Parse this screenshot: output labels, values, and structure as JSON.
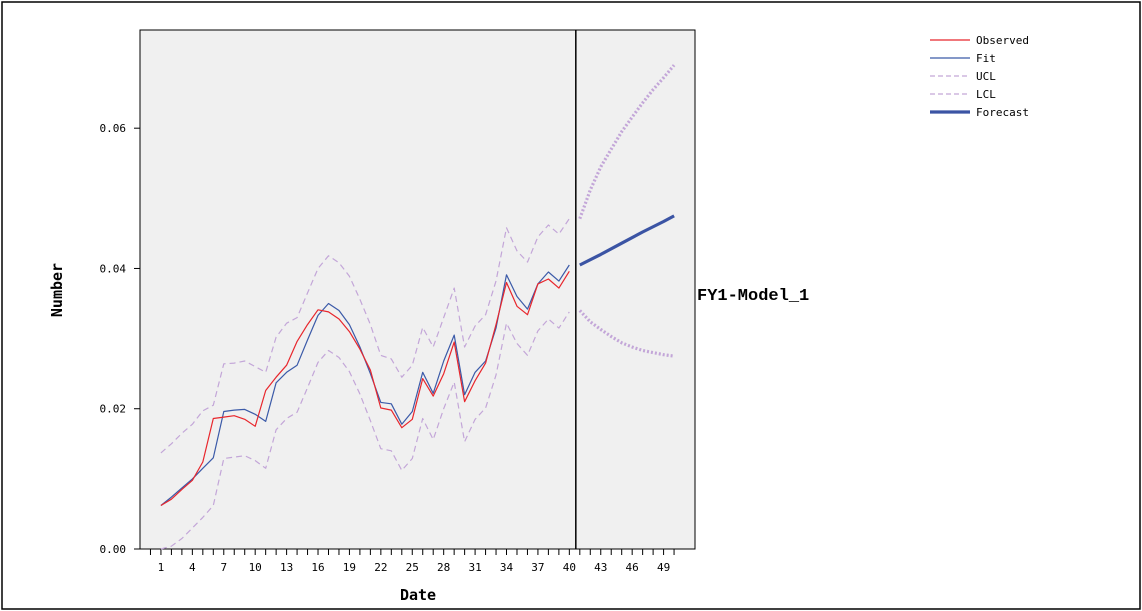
{
  "chart_data": {
    "type": "line",
    "ylabel": "Number",
    "xlabel": "Date",
    "model_label": "FY1-Model_1",
    "x_tick_labels": [
      "1",
      "4",
      "7",
      "10",
      "13",
      "16",
      "19",
      "22",
      "25",
      "28",
      "31",
      "34",
      "37",
      "40",
      "43",
      "46",
      "49"
    ],
    "x_ticks": [
      1,
      4,
      7,
      10,
      13,
      16,
      19,
      22,
      25,
      28,
      31,
      34,
      37,
      40,
      43,
      46,
      49
    ],
    "y_ticks": [
      0.0,
      0.02,
      0.04,
      0.06
    ],
    "y_tick_labels": [
      "0.00",
      "0.02",
      "0.04",
      "0.06"
    ],
    "xlim": [
      -1,
      52
    ],
    "ylim": [
      0,
      0.074
    ],
    "forecast_origin": 41,
    "colors": {
      "observed": "#e8262c",
      "fit": "#3b5aa8",
      "ucl": "#c3a6d8",
      "lcl": "#c3a6d8",
      "forecast": "#3b54a4",
      "plot_bg": "#f0f0f0"
    },
    "legend": [
      {
        "key": "observed",
        "label": "Observed",
        "style": "solid"
      },
      {
        "key": "fit",
        "label": "Fit",
        "style": "solid"
      },
      {
        "key": "ucl",
        "label": "UCL",
        "style": "dashed"
      },
      {
        "key": "lcl",
        "label": "LCL",
        "style": "dashed"
      },
      {
        "key": "forecast",
        "label": "Forecast",
        "style": "thick"
      }
    ],
    "series": [
      {
        "name": "Observed",
        "key": "observed",
        "style": "solid",
        "x": [
          1,
          2,
          3,
          4,
          5,
          6,
          7,
          8,
          9,
          10,
          11,
          12,
          13,
          14,
          15,
          16,
          17,
          18,
          19,
          20,
          21,
          22,
          23,
          24,
          25,
          26,
          27,
          28,
          29,
          30,
          31,
          32,
          33,
          34,
          35,
          36,
          37,
          38,
          39,
          40
        ],
        "y": [
          0.0062,
          0.0071,
          0.0085,
          0.0098,
          0.0124,
          0.0186,
          0.0188,
          0.019,
          0.0185,
          0.0175,
          0.0226,
          0.0245,
          0.0262,
          0.0296,
          0.032,
          0.0341,
          0.0338,
          0.0328,
          0.031,
          0.0285,
          0.0255,
          0.0201,
          0.0198,
          0.0173,
          0.0185,
          0.0243,
          0.0218,
          0.025,
          0.0295,
          0.021,
          0.024,
          0.0265,
          0.032,
          0.038,
          0.0346,
          0.0334,
          0.0378,
          0.0385,
          0.0372,
          0.0396
        ]
      },
      {
        "name": "Fit",
        "key": "fit",
        "style": "solid",
        "x": [
          1,
          2,
          3,
          4,
          5,
          6,
          7,
          8,
          9,
          10,
          11,
          12,
          13,
          14,
          15,
          16,
          17,
          18,
          19,
          20,
          21,
          22,
          23,
          24,
          25,
          26,
          27,
          28,
          29,
          30,
          31,
          32,
          33,
          34,
          35,
          36,
          37,
          38,
          39,
          40
        ],
        "y": [
          0.0062,
          0.0074,
          0.0087,
          0.01,
          0.0115,
          0.013,
          0.0196,
          0.0198,
          0.0199,
          0.0192,
          0.0182,
          0.0237,
          0.0252,
          0.0262,
          0.0298,
          0.0333,
          0.035,
          0.034,
          0.032,
          0.0288,
          0.025,
          0.0209,
          0.0207,
          0.0178,
          0.0196,
          0.0252,
          0.0222,
          0.0268,
          0.0305,
          0.022,
          0.0252,
          0.0268,
          0.0315,
          0.0391,
          0.036,
          0.0342,
          0.0378,
          0.0395,
          0.0382,
          0.0405
        ]
      },
      {
        "name": "UCL",
        "key": "ucl",
        "style": "dashed",
        "x": [
          1,
          2,
          3,
          4,
          5,
          6,
          7,
          8,
          9,
          10,
          11,
          12,
          13,
          14,
          15,
          16,
          17,
          18,
          19,
          20,
          21,
          22,
          23,
          24,
          25,
          26,
          27,
          28,
          29,
          30,
          31,
          32,
          33,
          34,
          35,
          36,
          37,
          38,
          39,
          40
        ],
        "y": [
          0.0137,
          0.015,
          0.0165,
          0.0178,
          0.0197,
          0.0205,
          0.0264,
          0.0265,
          0.0268,
          0.026,
          0.0252,
          0.0302,
          0.0322,
          0.033,
          0.0365,
          0.04,
          0.0418,
          0.0408,
          0.0389,
          0.0356,
          0.032,
          0.0276,
          0.0271,
          0.0245,
          0.0262,
          0.0316,
          0.0288,
          0.033,
          0.0372,
          0.0288,
          0.0318,
          0.0334,
          0.0382,
          0.0458,
          0.0425,
          0.0409,
          0.0445,
          0.0462,
          0.0449,
          0.0471
        ]
      },
      {
        "name": "LCL",
        "key": "lcl",
        "style": "dashed",
        "x": [
          1,
          2,
          3,
          4,
          5,
          6,
          7,
          8,
          9,
          10,
          11,
          12,
          13,
          14,
          15,
          16,
          17,
          18,
          19,
          20,
          21,
          22,
          23,
          24,
          25,
          26,
          27,
          28,
          29,
          30,
          31,
          32,
          33,
          34,
          35,
          36,
          37,
          38,
          39,
          40
        ],
        "y": [
          -0.0012,
          0.0004,
          0.0015,
          0.003,
          0.0045,
          0.0062,
          0.0129,
          0.0131,
          0.0133,
          0.0126,
          0.0115,
          0.017,
          0.0186,
          0.0195,
          0.023,
          0.0266,
          0.0283,
          0.0273,
          0.0253,
          0.0221,
          0.0183,
          0.0143,
          0.014,
          0.0112,
          0.0129,
          0.0186,
          0.0156,
          0.02,
          0.0238,
          0.0153,
          0.0185,
          0.0201,
          0.0248,
          0.0322,
          0.0293,
          0.0276,
          0.0311,
          0.0328,
          0.0315,
          0.0338
        ]
      },
      {
        "name": "Forecast",
        "key": "forecast",
        "style": "thick",
        "x": [
          41,
          43,
          45,
          47,
          49,
          50
        ],
        "y": [
          0.0405,
          0.042,
          0.0436,
          0.0452,
          0.0467,
          0.0475
        ]
      },
      {
        "name": "UCL",
        "key": "ucl",
        "style": "dotted-thick",
        "x": [
          41,
          42,
          43,
          44,
          45,
          46,
          47,
          48,
          49,
          50
        ],
        "y": [
          0.0471,
          0.0512,
          0.0545,
          0.057,
          0.0595,
          0.0616,
          0.0636,
          0.0655,
          0.0672,
          0.069
        ]
      },
      {
        "name": "LCL",
        "key": "lcl",
        "style": "dotted-thick",
        "x": [
          41,
          42,
          43,
          44,
          45,
          46,
          47,
          48,
          49,
          50
        ],
        "y": [
          0.034,
          0.0324,
          0.0313,
          0.0303,
          0.0294,
          0.0288,
          0.0283,
          0.028,
          0.0277,
          0.0275
        ]
      }
    ]
  }
}
